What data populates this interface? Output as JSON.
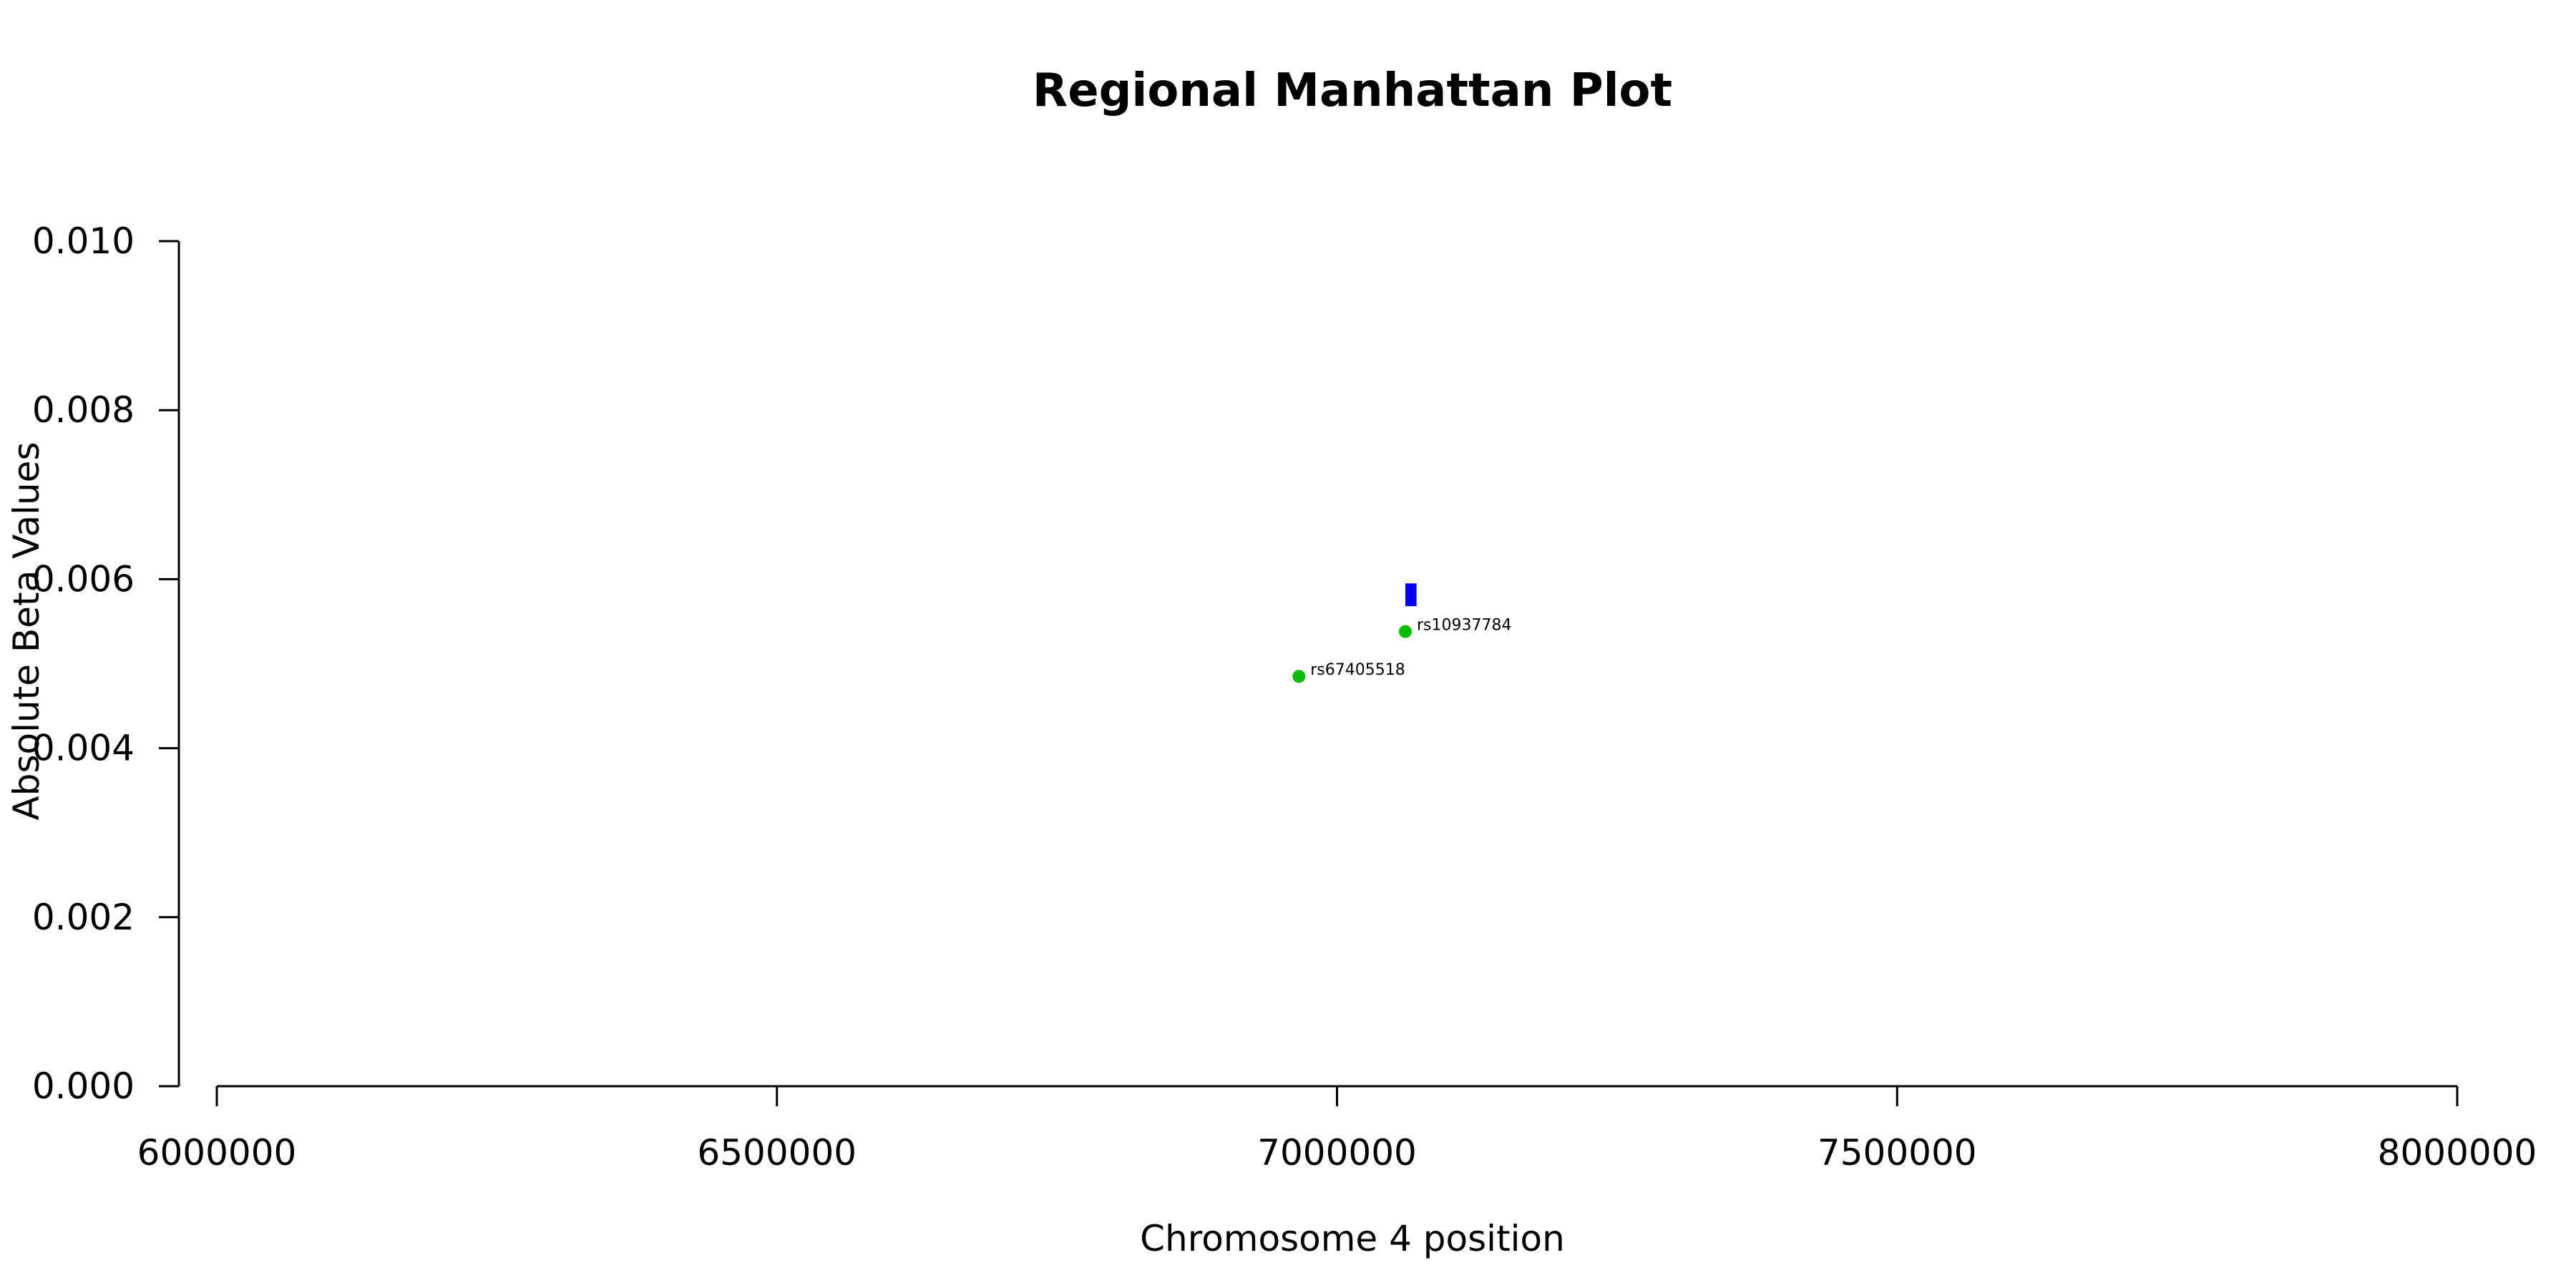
{
  "chart_data": {
    "type": "scatter",
    "title": "Regional Manhattan Plot",
    "xlabel": "Chromosome 4 position",
    "ylabel": "Absolute Beta Values",
    "xlim": [
      6000000,
      8000000
    ],
    "ylim": [
      0,
      0.01
    ],
    "x_ticks": [
      6000000,
      6500000,
      7000000,
      7500000,
      8000000
    ],
    "x_tick_labels": [
      "6000000",
      "6500000",
      "7000000",
      "7500000",
      "8000000"
    ],
    "y_ticks": [
      0,
      0.002,
      0.004,
      0.006,
      0.008,
      0.01
    ],
    "y_tick_labels": [
      "0.000",
      "0.002",
      "0.004",
      "0.006",
      "0.008",
      "0.010"
    ],
    "grid": false,
    "points": [
      {
        "x": 6966000,
        "y": 0.00485,
        "label": "rs67405518",
        "color": "#00bb00"
      },
      {
        "x": 7061000,
        "y": 0.00538,
        "label": "rs10937784",
        "color": "#00bb00"
      }
    ],
    "rects": [
      {
        "x0": 7061000,
        "x1": 7071000,
        "y0": 0.00568,
        "y1": 0.00595,
        "color": "#0000ee"
      }
    ]
  }
}
